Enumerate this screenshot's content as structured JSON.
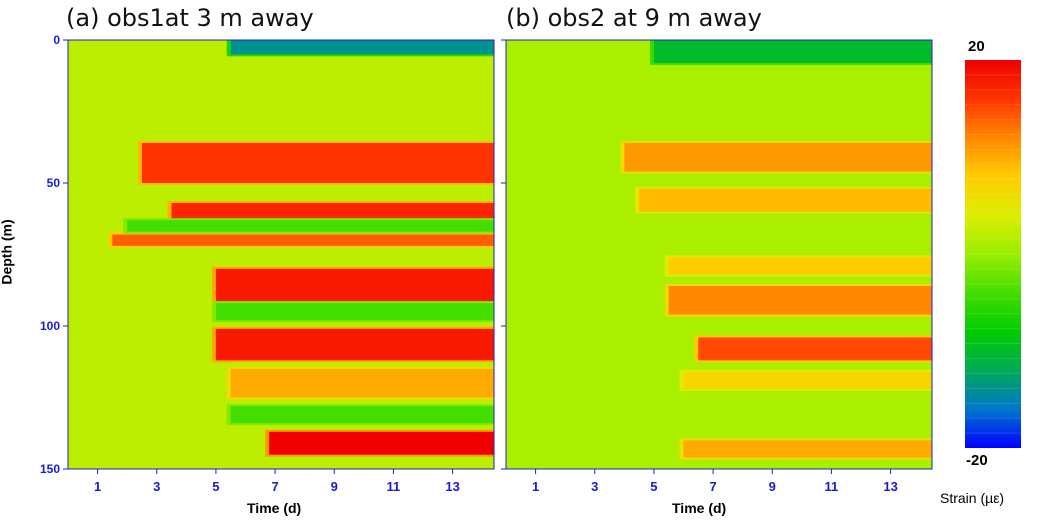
{
  "panels": [
    {
      "title": "(a) obs1at 3 m away"
    },
    {
      "title": "(b) obs2 at 9 m away"
    }
  ],
  "colors": {
    "tick_text": "#1a1ad6",
    "axis": "#2222bb",
    "colormap": [
      "#0000ff",
      "#0077cc",
      "#00aa55",
      "#00cc00",
      "#44dd00",
      "#99ee00",
      "#ddee00",
      "#ffcc00",
      "#ff8800",
      "#ff3300",
      "#ee0000"
    ]
  },
  "chart_data": {
    "type": "heatmap",
    "xlabel": "Time (d)",
    "ylabel": "Depth (m)",
    "x_ticks": [
      1,
      3,
      5,
      7,
      9,
      11,
      13
    ],
    "xlim": [
      0,
      14.4
    ],
    "y_ticks": [
      0,
      50,
      100,
      150
    ],
    "ylim": [
      0,
      150
    ],
    "y_inverted": true,
    "colorbar": {
      "title": "Strain (µε)",
      "max_label": "20",
      "min_label": "-20",
      "min": -20,
      "max": 20
    },
    "panels": [
      {
        "title": "(a) obs1at 3 m away",
        "background_strain": 2,
        "bands": [
          {
            "depth": [
              36,
              50
            ],
            "start_day": 2.5,
            "strain": 16
          },
          {
            "depth": [
              57,
              63
            ],
            "start_day": 3.5,
            "strain": 17
          },
          {
            "depth": [
              68,
              72
            ],
            "start_day": 1.5,
            "strain": 14
          },
          {
            "depth": [
              80,
              92
            ],
            "start_day": 5.0,
            "strain": 18
          },
          {
            "depth": [
              101,
              112
            ],
            "start_day": 5.0,
            "strain": 18
          },
          {
            "depth": [
              115,
              125
            ],
            "start_day": 5.5,
            "strain": 10
          },
          {
            "depth": [
              137,
              145
            ],
            "start_day": 6.8,
            "strain": 20
          },
          {
            "depth": [
              0,
              5
            ],
            "start_day": 5.5,
            "strain": -14
          },
          {
            "depth": [
              63,
              67
            ],
            "start_day": 2.0,
            "strain": -4
          },
          {
            "depth": [
              92,
              98
            ],
            "start_day": 5.0,
            "strain": -4
          },
          {
            "depth": [
              128,
              134
            ],
            "start_day": 5.5,
            "strain": -4
          }
        ]
      },
      {
        "title": "(b) obs2 at 9 m away",
        "background_strain": 1,
        "bands": [
          {
            "depth": [
              36,
              46
            ],
            "start_day": 4.0,
            "strain": 11
          },
          {
            "depth": [
              52,
              60
            ],
            "start_day": 4.5,
            "strain": 9
          },
          {
            "depth": [
              76,
              82
            ],
            "start_day": 5.5,
            "strain": 8
          },
          {
            "depth": [
              86,
              96
            ],
            "start_day": 5.5,
            "strain": 12
          },
          {
            "depth": [
              104,
              112
            ],
            "start_day": 6.5,
            "strain": 15
          },
          {
            "depth": [
              116,
              122
            ],
            "start_day": 6.0,
            "strain": 7
          },
          {
            "depth": [
              140,
              146
            ],
            "start_day": 6.0,
            "strain": 10
          },
          {
            "depth": [
              0,
              8
            ],
            "start_day": 5.0,
            "strain": -10
          }
        ]
      }
    ]
  }
}
